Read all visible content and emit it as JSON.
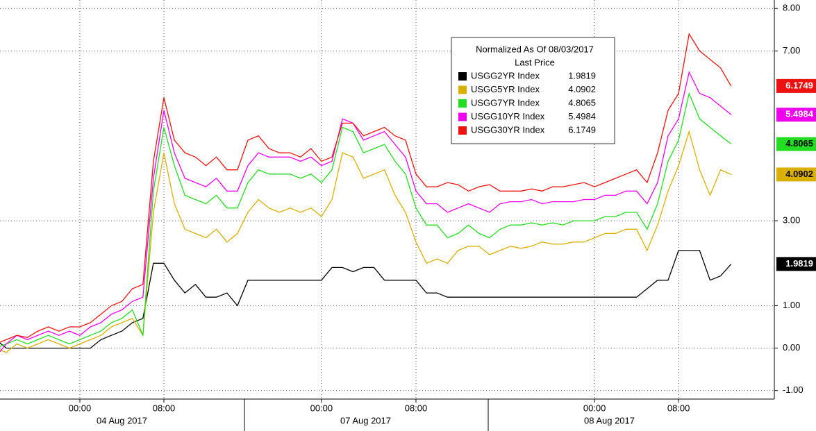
{
  "chart_data": {
    "type": "line",
    "legend_title": "Normalized As Of 08/03/2017",
    "legend_subtitle": "Last Price",
    "categories": [
      null,
      null,
      null,
      null,
      null,
      null,
      null,
      null,
      "00:00",
      null,
      null,
      null,
      null,
      null,
      null,
      null,
      "08:00",
      null,
      null,
      null,
      null,
      null,
      null,
      null,
      null,
      null,
      null,
      null,
      null,
      null,
      null,
      "00:00",
      null,
      null,
      null,
      null,
      null,
      null,
      null,
      null,
      "08:00",
      null,
      null,
      null,
      null,
      null,
      null,
      null,
      null,
      null,
      null,
      null,
      null,
      null,
      null,
      null,
      null,
      "00:00",
      null,
      null,
      null,
      null,
      null,
      null,
      null,
      "08:00",
      null,
      null,
      null,
      null,
      null
    ],
    "dates": [
      "04 Aug 2017",
      "07 Aug 2017",
      "08 Aug 2017"
    ],
    "ylim": [
      -1.2,
      8.2
    ],
    "yticks": [
      {
        "value": -1,
        "label": "-1.00"
      },
      {
        "value": 0,
        "label": "0.00"
      },
      {
        "value": 1,
        "label": "1.00"
      },
      {
        "value": 3,
        "label": "3.00"
      },
      {
        "value": 7,
        "label": "7.00"
      },
      {
        "value": 8,
        "label": "8.00"
      }
    ],
    "grid": true,
    "series": [
      {
        "name": "USGG2YR Index",
        "last_price": 1.9819,
        "color": "#000000",
        "text_color": "#ffffff",
        "values": [
          0.2,
          0,
          0,
          0,
          0,
          0,
          0,
          0,
          0,
          0,
          0.2,
          0.3,
          0.4,
          0.6,
          0.7,
          2.0,
          2.0,
          1.6,
          1.3,
          1.5,
          1.2,
          1.2,
          1.3,
          1.0,
          1.6,
          1.6,
          1.6,
          1.6,
          1.6,
          1.6,
          1.6,
          1.6,
          1.9,
          1.9,
          1.8,
          1.9,
          1.9,
          1.6,
          1.6,
          1.6,
          1.6,
          1.3,
          1.3,
          1.2,
          1.2,
          1.2,
          1.2,
          1.2,
          1.2,
          1.2,
          1.2,
          1.2,
          1.2,
          1.2,
          1.2,
          1.2,
          1.2,
          1.2,
          1.2,
          1.2,
          1.2,
          1.2,
          1.4,
          1.6,
          1.6,
          2.3,
          2.3,
          2.3,
          1.6,
          1.7,
          1.98
        ]
      },
      {
        "name": "USGG5YR Index",
        "last_price": 4.0902,
        "color": "#d9b000",
        "text_color": "#000000",
        "values": [
          0,
          -0.1,
          0.1,
          0,
          0.1,
          0.2,
          0.1,
          0,
          0.1,
          0.2,
          0.3,
          0.5,
          0.6,
          0.7,
          0.3,
          3.2,
          4.6,
          3.4,
          2.8,
          2.7,
          2.6,
          2.8,
          2.5,
          2.7,
          3.2,
          3.5,
          3.3,
          3.2,
          3.3,
          3.2,
          3.3,
          3.1,
          3.5,
          4.6,
          4.5,
          4.0,
          4.1,
          4.2,
          3.6,
          3.2,
          2.5,
          2.0,
          2.1,
          2.0,
          2.3,
          2.4,
          2.4,
          2.2,
          2.3,
          2.4,
          2.35,
          2.4,
          2.5,
          2.45,
          2.45,
          2.5,
          2.5,
          2.6,
          2.7,
          2.7,
          2.8,
          2.8,
          2.3,
          2.9,
          3.7,
          4.3,
          5.1,
          4.2,
          3.6,
          4.2,
          4.09
        ]
      },
      {
        "name": "USGG7YR Index",
        "last_price": 4.8065,
        "color": "#22dd22",
        "text_color": "#000000",
        "values": [
          0,
          0.1,
          0.2,
          0.1,
          0.2,
          0.3,
          0.2,
          0.1,
          0.2,
          0.3,
          0.4,
          0.6,
          0.7,
          0.9,
          0.3,
          3.7,
          5.2,
          4.3,
          3.6,
          3.5,
          3.4,
          3.6,
          3.3,
          3.3,
          3.9,
          4.2,
          4.1,
          4.1,
          4.1,
          4.0,
          4.1,
          3.9,
          4.2,
          5.2,
          5.1,
          4.6,
          4.7,
          4.8,
          4.4,
          4.1,
          3.3,
          2.9,
          2.9,
          2.6,
          2.7,
          2.9,
          2.7,
          2.6,
          2.8,
          2.9,
          2.9,
          2.95,
          2.9,
          2.95,
          2.9,
          3.0,
          3.0,
          3.0,
          3.1,
          3.1,
          3.2,
          3.2,
          2.8,
          3.4,
          4.4,
          4.9,
          6.0,
          5.4,
          5.2,
          5.0,
          4.81
        ]
      },
      {
        "name": "USGG10YR Index",
        "last_price": 5.4984,
        "color": "#ee00ee",
        "text_color": "#ffffff",
        "values": [
          -0.2,
          0.1,
          0.3,
          0.2,
          0.3,
          0.4,
          0.3,
          0.4,
          0.3,
          0.5,
          0.6,
          0.8,
          0.9,
          1.1,
          1.2,
          4.0,
          5.6,
          4.6,
          4.0,
          3.9,
          3.8,
          4.0,
          3.7,
          3.7,
          4.3,
          4.6,
          4.5,
          4.5,
          4.5,
          4.4,
          4.5,
          4.3,
          4.4,
          5.4,
          5.3,
          4.9,
          5.0,
          5.1,
          4.8,
          4.5,
          3.7,
          3.4,
          3.4,
          3.2,
          3.3,
          3.4,
          3.3,
          3.2,
          3.4,
          3.45,
          3.45,
          3.5,
          3.4,
          3.45,
          3.45,
          3.45,
          3.5,
          3.5,
          3.6,
          3.6,
          3.7,
          3.7,
          3.4,
          3.9,
          5.0,
          5.4,
          6.5,
          6.0,
          5.9,
          5.7,
          5.5
        ]
      },
      {
        "name": "USGG30YR Index",
        "last_price": 6.1749,
        "color": "#ee1111",
        "text_color": "#ffffff",
        "values": [
          0.1,
          0.2,
          0.3,
          0.25,
          0.4,
          0.5,
          0.4,
          0.5,
          0.5,
          0.6,
          0.8,
          1.0,
          1.1,
          1.4,
          1.5,
          4.4,
          5.9,
          4.9,
          4.6,
          4.5,
          4.3,
          4.5,
          4.2,
          4.2,
          4.9,
          5.0,
          4.7,
          4.6,
          4.6,
          4.5,
          4.7,
          4.4,
          4.5,
          5.3,
          5.3,
          5.0,
          5.1,
          5.2,
          5.0,
          4.9,
          4.1,
          3.8,
          3.8,
          3.9,
          3.85,
          3.7,
          3.8,
          3.85,
          3.7,
          3.7,
          3.7,
          3.75,
          3.7,
          3.8,
          3.8,
          3.85,
          3.9,
          3.8,
          3.9,
          4.0,
          4.1,
          4.2,
          3.9,
          4.6,
          5.6,
          6.0,
          7.4,
          7.0,
          6.8,
          6.6,
          6.17
        ]
      }
    ]
  }
}
